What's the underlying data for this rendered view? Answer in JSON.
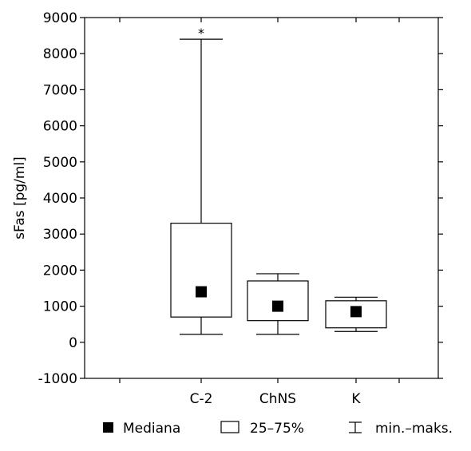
{
  "chart_data": {
    "type": "box",
    "ylabel": "sFas [pg/ml]",
    "xlabel": "",
    "ylim": [
      -1000,
      9000
    ],
    "yticks": [
      -1000,
      0,
      1000,
      2000,
      3000,
      4000,
      5000,
      6000,
      7000,
      8000,
      9000
    ],
    "categories": [
      "C-2",
      "ChNS",
      "K"
    ],
    "series": [
      {
        "category": "C-2",
        "min": 220,
        "q1": 700,
        "median": 1400,
        "q3": 3300,
        "max": 8400,
        "annotation": "*"
      },
      {
        "category": "ChNS",
        "min": 220,
        "q1": 600,
        "median": 1000,
        "q3": 1700,
        "max": 1900,
        "annotation": ""
      },
      {
        "category": "K",
        "min": 300,
        "q1": 400,
        "median": 850,
        "q3": 1150,
        "max": 1250,
        "annotation": ""
      }
    ],
    "legend": {
      "position": "bottom",
      "items": [
        {
          "symbol": "filled-square",
          "label": "Mediana"
        },
        {
          "symbol": "open-box",
          "label": "25–75%"
        },
        {
          "symbol": "whisker",
          "label": "min.–maks."
        }
      ]
    },
    "grid": false,
    "colors": {
      "stroke": "#000000",
      "fill": "#ffffff",
      "median": "#000000"
    }
  }
}
